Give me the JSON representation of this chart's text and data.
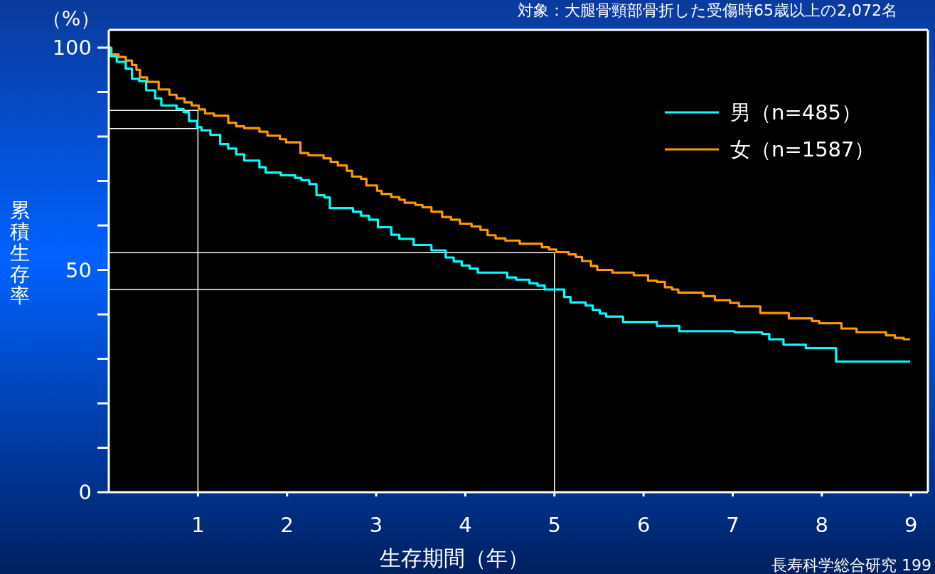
{
  "chart_data": {
    "type": "step",
    "title": "対象：大腿骨頸部骨折した受傷時65歳以上の2,072名",
    "xlabel": "生存期間（年）",
    "ylabel": "累積生存率",
    "annotations": [
      "（%）",
      "長寿科学総合研究 199"
    ],
    "xlim": [
      0,
      9.19
    ],
    "ylim": [
      0,
      104
    ],
    "xticks": [
      1,
      2,
      3,
      4,
      5,
      6,
      7,
      8,
      9
    ],
    "yticks": [
      0,
      {
        "value": 10,
        "label": null
      },
      {
        "value": 20,
        "label": null
      },
      {
        "value": 30,
        "label": null
      },
      {
        "value": 40,
        "label": null
      },
      50,
      {
        "value": 60,
        "label": null
      },
      {
        "value": 70,
        "label": null
      },
      {
        "value": 80,
        "label": null
      },
      {
        "value": 90,
        "label": null
      },
      100
    ],
    "grid": false,
    "legend": "top right",
    "marker": "none",
    "line_style": "solid",
    "ref_lines": [
      {
        "axis": "y",
        "value": 85.9,
        "color": "#ffffff"
      },
      {
        "axis": "y",
        "value": 81.8,
        "color": "#ffffff"
      },
      {
        "axis": "y",
        "value": 53.9,
        "color": "#ffffff"
      },
      {
        "axis": "y",
        "value": 45.6,
        "color": "#ffffff"
      },
      {
        "axis": "x",
        "value": 1,
        "color": "#ffffff"
      },
      {
        "axis": "x",
        "value": 5,
        "color": "#ffffff"
      }
    ],
    "series": [
      {
        "name": "男（n=485）",
        "color": "#00ffff",
        "x": [
          0,
          0.02,
          0.09,
          0.19,
          0.26,
          0.34,
          0.42,
          0.52,
          0.59,
          0.76,
          0.84,
          0.9,
          0.99,
          1.04,
          1.14,
          1.25,
          1.34,
          1.43,
          1.52,
          1.69,
          1.76,
          1.93,
          2.09,
          2.16,
          2.25,
          2.33,
          2.42,
          2.48,
          2.74,
          2.83,
          2.92,
          3.02,
          3.17,
          3.26,
          3.42,
          3.62,
          3.78,
          3.87,
          3.96,
          4.05,
          4.14,
          4.47,
          4.57,
          4.72,
          4.81,
          4.89,
          5.11,
          5.18,
          5.35,
          5.43,
          5.51,
          5.58,
          5.77,
          6.15,
          6.4,
          7.02,
          7.33,
          7.41,
          7.57,
          7.82,
          8.16,
          8.99
        ],
        "values": [
          100,
          98.1,
          96.8,
          95.3,
          93.0,
          92.5,
          90.4,
          88.6,
          87.0,
          86.2,
          85.5,
          83.5,
          82.1,
          81.4,
          80.4,
          78.3,
          77.3,
          76.0,
          74.6,
          73.1,
          71.9,
          71.3,
          70.7,
          70.2,
          69.3,
          66.8,
          66.3,
          63.9,
          63.1,
          62.2,
          61.3,
          59.6,
          57.9,
          57.0,
          55.6,
          54.4,
          52.8,
          51.9,
          51.0,
          50.3,
          49.4,
          48.3,
          47.8,
          47.0,
          46.5,
          45.6,
          43.9,
          42.7,
          42.0,
          41.0,
          40.2,
          39.5,
          38.3,
          37.4,
          36.2,
          36.0,
          35.6,
          34.4,
          33.2,
          32.4,
          29.4,
          29.4
        ]
      },
      {
        "name": "女（n=1587）",
        "color": "#ff9900",
        "x": [
          0,
          0.03,
          0.11,
          0.19,
          0.26,
          0.31,
          0.35,
          0.43,
          0.56,
          0.68,
          0.76,
          0.85,
          0.93,
          1.01,
          1.08,
          1.18,
          1.34,
          1.43,
          1.52,
          1.69,
          1.78,
          1.92,
          1.99,
          2.15,
          2.24,
          2.41,
          2.49,
          2.57,
          2.67,
          2.73,
          2.83,
          2.89,
          3.01,
          3.06,
          3.17,
          3.26,
          3.32,
          3.44,
          3.52,
          3.62,
          3.74,
          3.84,
          3.94,
          4.07,
          4.17,
          4.25,
          4.34,
          4.45,
          4.61,
          4.86,
          4.94,
          5.02,
          5.16,
          5.24,
          5.31,
          5.41,
          5.48,
          5.65,
          5.89,
          6.05,
          6.15,
          6.24,
          6.32,
          6.39,
          6.67,
          6.8,
          6.97,
          7.07,
          7.31,
          7.63,
          7.89,
          7.97,
          8.22,
          8.39,
          8.72,
          8.82,
          8.92,
          8.99
        ],
        "values": [
          100,
          98.5,
          97.9,
          97.1,
          96.1,
          95.0,
          93.3,
          92.3,
          90.6,
          89.4,
          88.6,
          87.7,
          87.0,
          86.1,
          85.2,
          84.7,
          83.1,
          82.3,
          81.9,
          81.1,
          80.2,
          79.4,
          78.7,
          76.3,
          75.8,
          75.1,
          74.3,
          73.5,
          72.3,
          71.0,
          70.5,
          69.0,
          67.8,
          67.1,
          66.4,
          65.8,
          65.1,
          64.6,
          64.1,
          63.1,
          61.9,
          61.3,
          60.4,
          59.8,
          59.0,
          57.8,
          57.1,
          56.6,
          55.9,
          55.1,
          54.6,
          54.0,
          53.5,
          52.9,
          52.0,
          50.9,
          50.0,
          49.4,
          48.8,
          47.6,
          47.3,
          46.1,
          45.6,
          44.9,
          44.1,
          43.2,
          42.6,
          41.8,
          40.3,
          39.1,
          38.5,
          38.0,
          36.8,
          36.0,
          35.3,
          34.7,
          34.4,
          34.4
        ]
      }
    ]
  }
}
